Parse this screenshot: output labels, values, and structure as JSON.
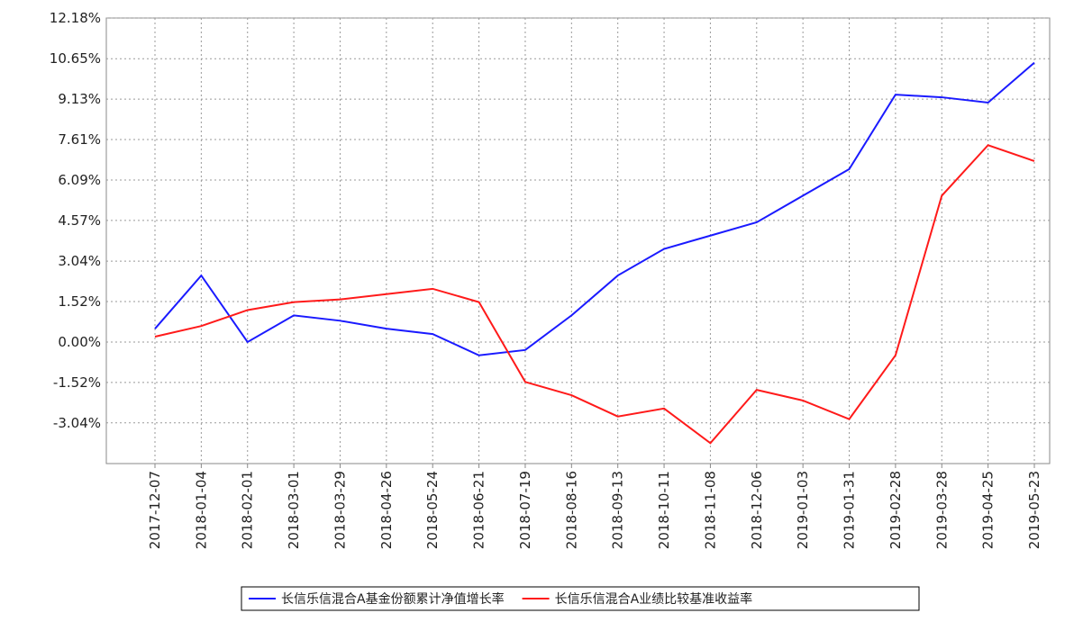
{
  "chart_data": {
    "type": "line",
    "categories": [
      "2017-12-07",
      "2018-01-04",
      "2018-02-01",
      "2018-03-01",
      "2018-03-29",
      "2018-04-26",
      "2018-05-24",
      "2018-06-21",
      "2018-07-19",
      "2018-08-16",
      "2018-09-13",
      "2018-10-11",
      "2018-11-08",
      "2018-12-06",
      "2019-01-03",
      "2019-01-31",
      "2019-02-28",
      "2019-03-28",
      "2019-04-25",
      "2019-05-23"
    ],
    "series": [
      {
        "name": "长信乐信混合A基金份额累计净值增长率",
        "color": "#1a1aff",
        "values": [
          0.5,
          2.5,
          0.0,
          1.0,
          0.8,
          0.5,
          0.3,
          -0.5,
          -0.3,
          1.0,
          2.5,
          3.5,
          4.0,
          4.5,
          5.5,
          6.5,
          9.3,
          9.2,
          9.0,
          10.5
        ]
      },
      {
        "name": "长信乐信混合A业绩比较基准收益率",
        "color": "#ff1a1a",
        "values": [
          0.2,
          0.6,
          1.2,
          1.5,
          1.6,
          1.8,
          2.0,
          1.5,
          -1.5,
          -2.0,
          -2.8,
          -2.5,
          -3.8,
          -1.8,
          -2.2,
          -2.9,
          -0.5,
          5.5,
          7.4,
          6.8
        ]
      }
    ],
    "ylim": [
      -4.57,
      12.18
    ],
    "yticks": [
      {
        "value": -3.04,
        "label": "-3.04%"
      },
      {
        "value": -1.52,
        "label": "-1.52%"
      },
      {
        "value": 0,
        "label": "0.00%"
      },
      {
        "value": 1.52,
        "label": "1.52%"
      },
      {
        "value": 3.04,
        "label": "3.04%"
      },
      {
        "value": 4.57,
        "label": "4.57%"
      },
      {
        "value": 6.09,
        "label": "6.09%"
      },
      {
        "value": 7.61,
        "label": "7.61%"
      },
      {
        "value": 9.13,
        "label": "9.13%"
      },
      {
        "value": 10.65,
        "label": "10.65%"
      },
      {
        "value": 12.18,
        "label": "12.18%"
      }
    ],
    "grid": true
  }
}
